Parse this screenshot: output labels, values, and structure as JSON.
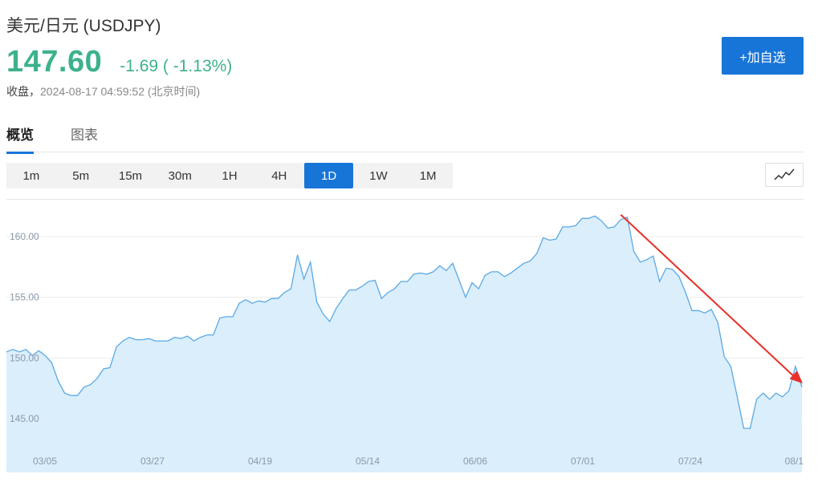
{
  "header": {
    "title": "美元/日元  (USDJPY)",
    "price": "147.60",
    "change": "-1.69 ( -1.13%)",
    "status_label": "收盘，",
    "timestamp": "2024-08-17 04:59:52",
    "timezone": " (北京时间)",
    "add_button": "+加自选"
  },
  "colors": {
    "accent": "#1875d8",
    "up_green": "#3db18d",
    "line": "#5aa9e6",
    "area": "#dbeefc",
    "arrow": "#e8302a"
  },
  "tabs": [
    {
      "label": "概览",
      "active": true
    },
    {
      "label": "图表",
      "active": false
    }
  ],
  "periods": [
    "1m",
    "5m",
    "15m",
    "30m",
    "1H",
    "4H",
    "1D",
    "1W",
    "1M"
  ],
  "active_period": "1D",
  "chart_type_icon": "line-chart-icon",
  "chart_data": {
    "type": "area",
    "title": "",
    "ylim": [
      143,
      162.5
    ],
    "y_ticks": [
      145,
      150,
      155,
      160
    ],
    "y_tick_labels": [
      "145.00",
      "150.00",
      "155.00",
      "160.00"
    ],
    "x_tick_labels": [
      "03/05",
      "03/27",
      "04/19",
      "05/14",
      "06/06",
      "07/01",
      "07/24",
      "08/1"
    ],
    "grid": true,
    "values": [
      150.5,
      150.7,
      150.5,
      150.7,
      150.2,
      150.6,
      150.2,
      149.6,
      148.1,
      147.1,
      146.9,
      146.9,
      147.6,
      147.8,
      148.3,
      149.1,
      149.2,
      150.9,
      151.4,
      151.7,
      151.5,
      151.5,
      151.6,
      151.4,
      151.4,
      151.4,
      151.7,
      151.6,
      151.8,
      151.4,
      151.7,
      151.9,
      151.9,
      153.3,
      153.4,
      153.4,
      154.5,
      154.8,
      154.5,
      154.7,
      154.6,
      154.9,
      154.9,
      155.4,
      155.7,
      158.5,
      156.5,
      157.9,
      154.6,
      153.6,
      153.0,
      154.1,
      154.9,
      155.6,
      155.6,
      155.9,
      156.3,
      156.4,
      154.9,
      155.4,
      155.7,
      156.3,
      156.3,
      156.9,
      157.0,
      156.9,
      157.1,
      157.6,
      157.2,
      157.8,
      156.4,
      155.0,
      156.2,
      155.7,
      156.8,
      157.1,
      157.1,
      156.7,
      157.0,
      157.4,
      157.8,
      158.0,
      158.6,
      159.9,
      159.7,
      159.8,
      160.8,
      160.8,
      160.9,
      161.5,
      161.5,
      161.7,
      161.3,
      160.7,
      160.8,
      161.4,
      161.6,
      158.8,
      157.9,
      158.1,
      158.4,
      156.3,
      157.4,
      157.3,
      156.7,
      155.4,
      153.9,
      153.9,
      153.7,
      154.0,
      152.9,
      150.1,
      149.3,
      146.8,
      144.2,
      144.2,
      146.6,
      147.1,
      146.6,
      147.1,
      146.8,
      147.3,
      149.3,
      147.6
    ]
  },
  "annotation": {
    "type": "arrow",
    "from_value": 161.8,
    "to_value": 147.9
  }
}
